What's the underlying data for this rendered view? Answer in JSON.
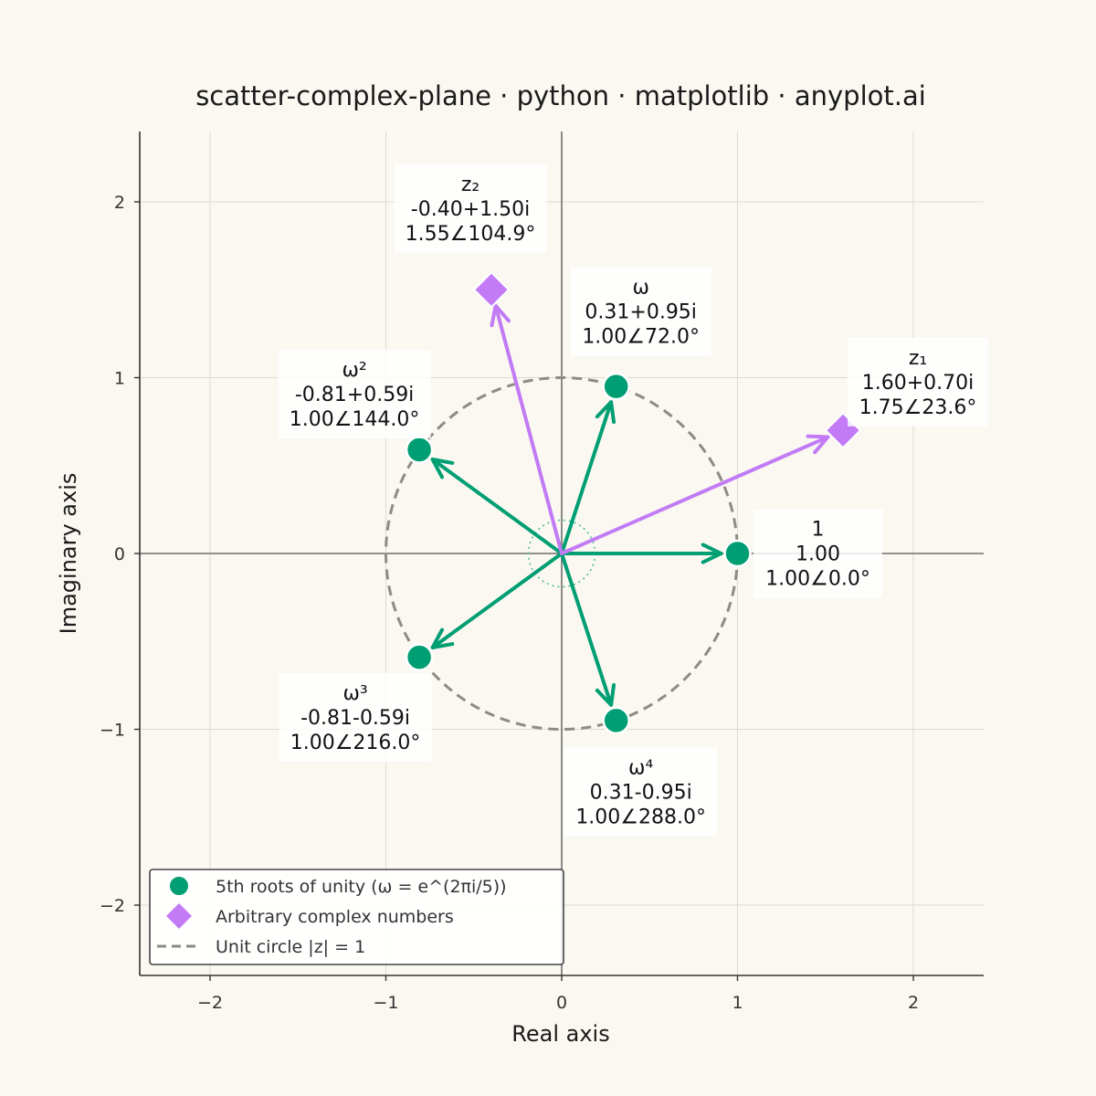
{
  "chart_data": {
    "type": "scatter",
    "title": "scatter-complex-plane · python · matplotlib · anyplot.ai",
    "xlabel": "Real axis",
    "ylabel": "Imaginary axis",
    "xlim": [
      -2.4,
      2.4
    ],
    "ylim": [
      -2.4,
      2.4
    ],
    "x_ticks": [
      -2,
      -1,
      0,
      1,
      2
    ],
    "y_ticks": [
      -2,
      -1,
      0,
      1,
      2
    ],
    "x_tick_labels": [
      "−2",
      "−1",
      "0",
      "1",
      "2"
    ],
    "y_tick_labels": [
      "−2",
      "−1",
      "0",
      "1",
      "2"
    ],
    "grid": true,
    "legend_position": "lower-left",
    "unit_circle": {
      "radius": 1,
      "color": "#8E8B85"
    },
    "series": [
      {
        "name": "5th roots of unity (ω = e^(2πi/5))",
        "marker": "circle",
        "color": "#009E73",
        "points": [
          {
            "x": 1.0,
            "y": 0.0,
            "label": "1",
            "rect": "1.00",
            "polar": "1.00∠0.0°"
          },
          {
            "x": 0.31,
            "y": 0.95,
            "label": "ω",
            "rect": "0.31+0.95i",
            "polar": "1.00∠72.0°"
          },
          {
            "x": -0.81,
            "y": 0.59,
            "label": "ω²",
            "rect": "-0.81+0.59i",
            "polar": "1.00∠144.0°"
          },
          {
            "x": -0.81,
            "y": -0.59,
            "label": "ω³",
            "rect": "-0.81-0.59i",
            "polar": "1.00∠216.0°"
          },
          {
            "x": 0.31,
            "y": -0.95,
            "label": "ω⁴",
            "rect": "0.31-0.95i",
            "polar": "1.00∠288.0°"
          }
        ]
      },
      {
        "name": "Arbitrary complex numbers",
        "marker": "diamond",
        "color": "#C27AF5",
        "points": [
          {
            "x": 1.6,
            "y": 0.7,
            "label": "z₁",
            "rect": "1.60+0.70i",
            "polar": "1.75∠23.6°"
          },
          {
            "x": -0.4,
            "y": 1.5,
            "label": "z₂",
            "rect": "-0.40+1.50i",
            "polar": "1.55∠104.9°"
          }
        ]
      }
    ],
    "legend": [
      {
        "label": "5th roots of unity (ω = e^(2πi/5))",
        "marker": "circle",
        "color": "#009E73"
      },
      {
        "label": "Arbitrary complex numbers",
        "marker": "diamond",
        "color": "#C27AF5"
      },
      {
        "label": "Unit circle  |z| = 1",
        "marker": "dashed-line",
        "color": "#8E8B85"
      }
    ]
  }
}
